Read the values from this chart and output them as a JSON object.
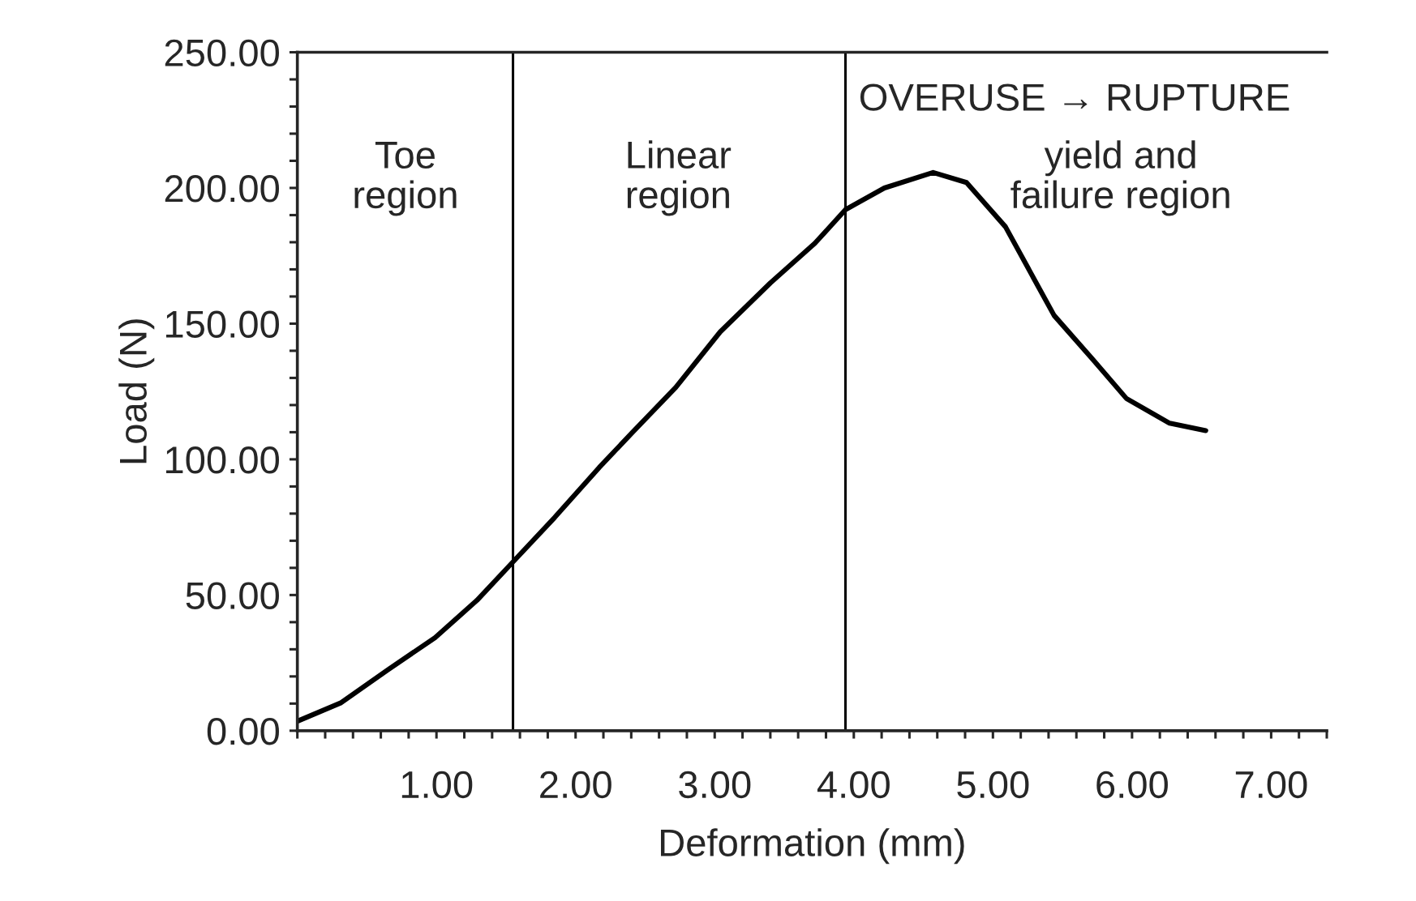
{
  "chart_data": {
    "type": "line",
    "xlabel": "Deformation (mm)",
    "ylabel": "Load (N)",
    "x": [
      0,
      0.31,
      0.65,
      0.99,
      1.29,
      1.55,
      1.85,
      2.17,
      2.41,
      2.72,
      3.04,
      3.4,
      3.72,
      3.94,
      4.22,
      4.57,
      4.81,
      5.09,
      5.44,
      5.72,
      5.96,
      6.27,
      6.53
    ],
    "series": [
      {
        "color": "#000000",
        "values": [
          3.5,
          10.2,
          22.4,
          34.3,
          48,
          62.2,
          78.6,
          97,
          110,
          126.5,
          147,
          165,
          179.6,
          192,
          200,
          205.7,
          202,
          185.7,
          153,
          136.7,
          122.4,
          113.3,
          110.6
        ]
      }
    ],
    "xlim": [
      0,
      7.4
    ],
    "ylim": [
      0,
      250
    ],
    "xticks": [
      {
        "value": 0,
        "label": null
      },
      {
        "value": 0.2,
        "label": null
      },
      {
        "value": 0.4,
        "label": null
      },
      {
        "value": 0.6,
        "label": null
      },
      {
        "value": 0.8,
        "label": null
      },
      {
        "value": 1,
        "label": "1.00"
      },
      {
        "value": 1.2,
        "label": null
      },
      {
        "value": 1.4,
        "label": null
      },
      {
        "value": 1.6,
        "label": null
      },
      {
        "value": 1.8,
        "label": null
      },
      {
        "value": 2,
        "label": "2.00"
      },
      {
        "value": 2.2,
        "label": null
      },
      {
        "value": 2.4,
        "label": null
      },
      {
        "value": 2.6,
        "label": null
      },
      {
        "value": 2.8,
        "label": null
      },
      {
        "value": 3,
        "label": "3.00"
      },
      {
        "value": 3.2,
        "label": null
      },
      {
        "value": 3.4,
        "label": null
      },
      {
        "value": 3.6,
        "label": null
      },
      {
        "value": 3.8,
        "label": null
      },
      {
        "value": 4,
        "label": "4.00"
      },
      {
        "value": 4.2,
        "label": null
      },
      {
        "value": 4.4,
        "label": null
      },
      {
        "value": 4.6,
        "label": null
      },
      {
        "value": 4.8,
        "label": null
      },
      {
        "value": 5,
        "label": "5.00"
      },
      {
        "value": 5.2,
        "label": null
      },
      {
        "value": 5.4,
        "label": null
      },
      {
        "value": 5.6,
        "label": null
      },
      {
        "value": 5.8,
        "label": null
      },
      {
        "value": 6,
        "label": "6.00"
      },
      {
        "value": 6.2,
        "label": null
      },
      {
        "value": 6.4,
        "label": null
      },
      {
        "value": 6.6,
        "label": null
      },
      {
        "value": 6.8,
        "label": null
      },
      {
        "value": 7,
        "label": "7.00"
      },
      {
        "value": 7.2,
        "label": null
      },
      {
        "value": 7.4,
        "label": null
      }
    ],
    "yticks": [
      {
        "value": 0,
        "label": "0.00"
      },
      {
        "value": 10,
        "label": null
      },
      {
        "value": 20,
        "label": null
      },
      {
        "value": 30,
        "label": null
      },
      {
        "value": 40,
        "label": null
      },
      {
        "value": 50,
        "label": "50.00"
      },
      {
        "value": 60,
        "label": null
      },
      {
        "value": 70,
        "label": null
      },
      {
        "value": 80,
        "label": null
      },
      {
        "value": 90,
        "label": null
      },
      {
        "value": 100,
        "label": "100.00"
      },
      {
        "value": 110,
        "label": null
      },
      {
        "value": 120,
        "label": null
      },
      {
        "value": 130,
        "label": null
      },
      {
        "value": 140,
        "label": null
      },
      {
        "value": 150,
        "label": "150.00"
      },
      {
        "value": 160,
        "label": null
      },
      {
        "value": 170,
        "label": null
      },
      {
        "value": 180,
        "label": null
      },
      {
        "value": 190,
        "label": null
      },
      {
        "value": 200,
        "label": "200.00"
      },
      {
        "value": 210,
        "label": null
      },
      {
        "value": 220,
        "label": null
      },
      {
        "value": 230,
        "label": null
      },
      {
        "value": 240,
        "label": null
      },
      {
        "value": 250,
        "label": "250.00"
      }
    ],
    "ref_lines": [
      {
        "axis": "x",
        "value": 1.55,
        "color": "#000000"
      },
      {
        "axis": "x",
        "value": 3.94,
        "color": "#000000"
      }
    ],
    "annotations": [
      "Toe\nregion",
      "Linear\nregion",
      "OVERUSE → RUPTURE",
      "yield and\nfailure region"
    ],
    "grid": false,
    "legend": false,
    "marker": "none",
    "line_style": "solid"
  }
}
